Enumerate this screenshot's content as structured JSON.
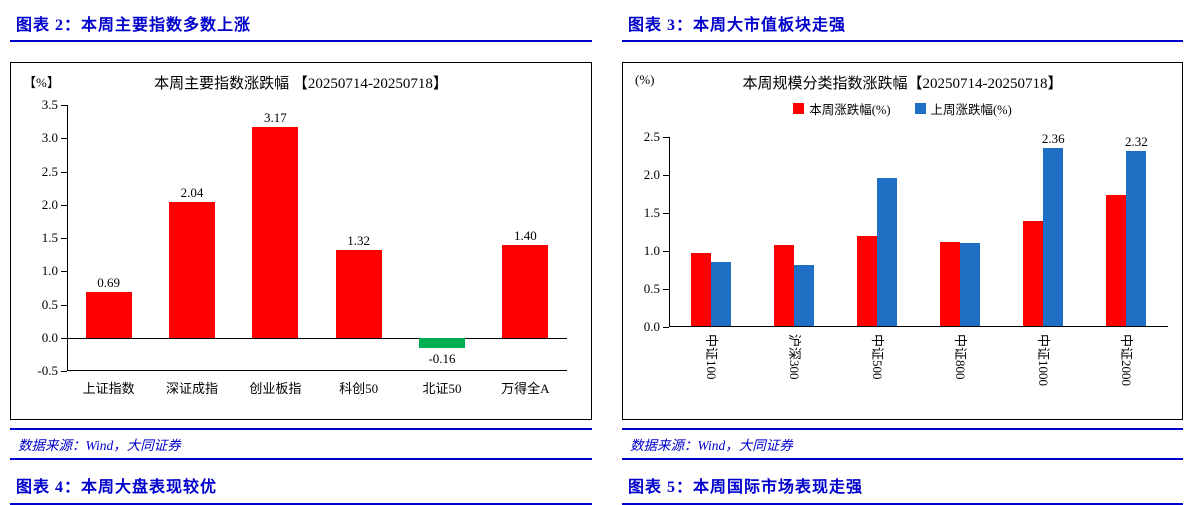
{
  "sections": {
    "left": {
      "header": "图表 2：本周主要指数多数上涨",
      "source": "数据来源：Wind，大同证券",
      "footer_header": "图表 4：本周大盘表现较优"
    },
    "right": {
      "header": "图表 3：本周大市值板块走强",
      "source": "数据来源：Wind，大同证券",
      "footer_header": "图表 5：本周国际市场表现走强"
    }
  },
  "colors": {
    "accent_blue": "#0000cc",
    "bar_red": "#ff0000",
    "bar_green": "#00b050",
    "bar_blue": "#1f6fc5",
    "axis_black": "#000000"
  },
  "chart_data": [
    {
      "type": "bar",
      "title": "本周主要指数涨跌幅 【20250714-20250718】",
      "unit_label": "【%】",
      "xlabel": "",
      "ylabel": "",
      "categories": [
        "上证指数",
        "深证成指",
        "创业板指",
        "科创50",
        "北证50",
        "万得全A"
      ],
      "values": [
        0.69,
        2.04,
        3.17,
        1.32,
        -0.16,
        1.4
      ],
      "data_labels": [
        "0.69",
        "2.04",
        "3.17",
        "1.32",
        "-0.16",
        "1.40"
      ],
      "ylim": [
        -0.5,
        3.5
      ],
      "ytick_step": 0.5,
      "grid": false,
      "legend_position": "none",
      "positive_color": "#ff0000",
      "negative_color": "#00b050"
    },
    {
      "type": "bar",
      "title": "本周规模分类指数涨跌幅【20250714-20250718】",
      "unit_label": "(%)",
      "xlabel": "",
      "ylabel": "",
      "categories": [
        "中证100",
        "沪深300",
        "中证500",
        "中证800",
        "中证1000",
        "中证2000"
      ],
      "series": [
        {
          "name": "本周涨跌幅(%)",
          "color": "#ff0000",
          "values": [
            0.98,
            1.08,
            1.2,
            1.12,
            1.4,
            1.74
          ]
        },
        {
          "name": "上周涨跌幅(%)",
          "color": "#1f6fc5",
          "values": [
            0.85,
            0.81,
            1.96,
            1.11,
            2.36,
            2.32
          ]
        }
      ],
      "point_labels": [
        {
          "series": 1,
          "index": 4,
          "text": "2.36"
        },
        {
          "series": 1,
          "index": 5,
          "text": "2.32"
        }
      ],
      "ylim": [
        0,
        2.5
      ],
      "ytick_step": 0.5,
      "grid": false,
      "legend_position": "top",
      "x_labels_rotated": true
    }
  ]
}
